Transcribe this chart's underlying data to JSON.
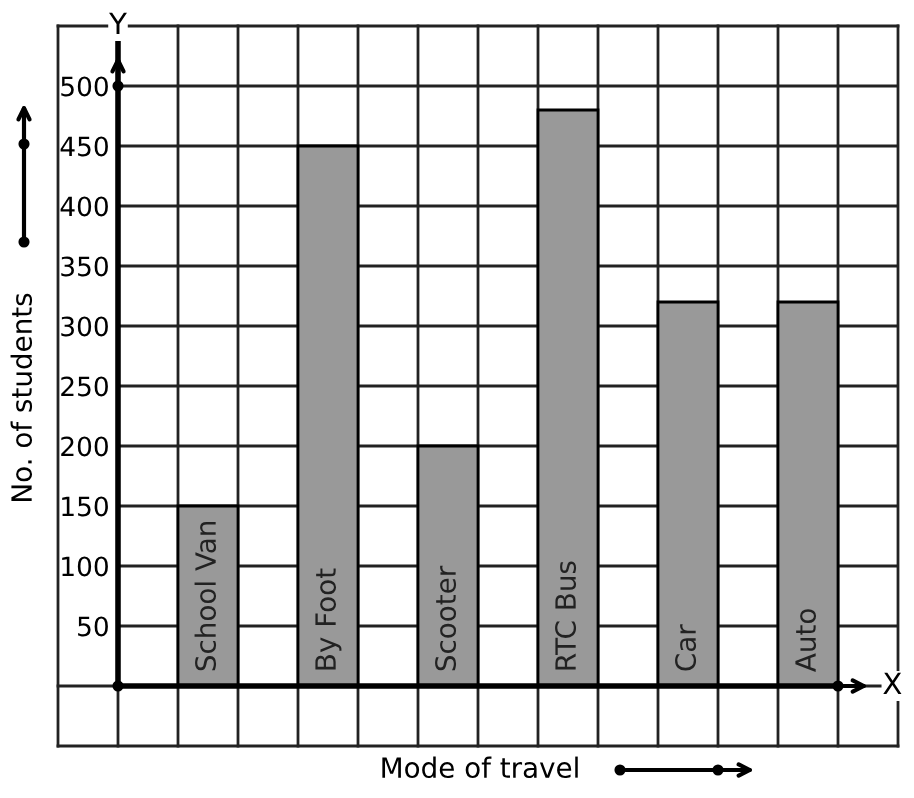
{
  "chart_data": {
    "type": "bar",
    "categories": [
      "School Van",
      "By Foot",
      "Scooter",
      "RTC Bus",
      "Car",
      "Auto"
    ],
    "values": [
      150,
      450,
      200,
      480,
      320,
      320
    ],
    "color": "#999999",
    "xlabel": "Mode of travel",
    "ylabel": "No. of students",
    "ylim": [
      -50,
      550
    ],
    "yticks": [
      50,
      100,
      150,
      200,
      250,
      300,
      350,
      400,
      450,
      500
    ],
    "annotations": [
      "Y",
      "X"
    ],
    "grid": true,
    "tick_labels": "y"
  }
}
